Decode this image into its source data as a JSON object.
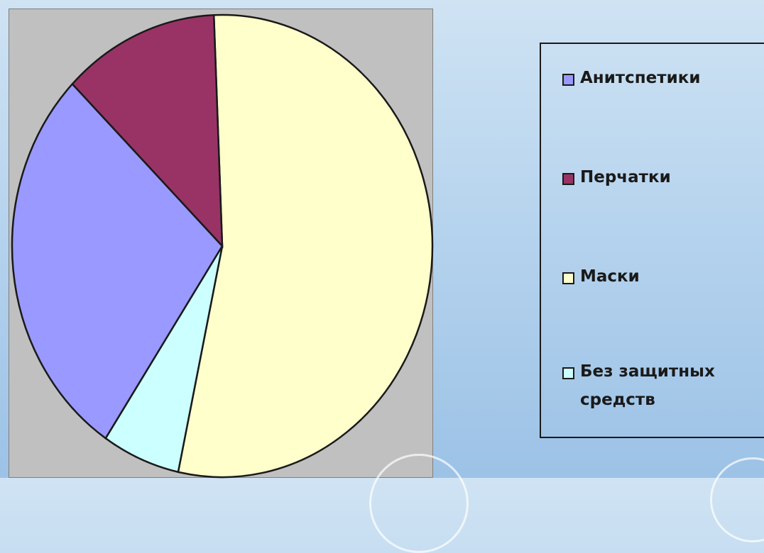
{
  "chart_data": {
    "type": "pie",
    "title": "",
    "categories": [
      "Анитспетики",
      "Перчатки",
      "Маски",
      "Без защитных средств"
    ],
    "values": [
      28,
      12,
      54,
      6
    ],
    "colors": [
      "#9999ff",
      "#993366",
      "#ffffcc",
      "#ccffff"
    ],
    "legend_position": "right"
  },
  "legend": {
    "items": [
      {
        "label": "Анитспетики",
        "color": "#9999ff"
      },
      {
        "label": "Перчатки",
        "color": "#993366"
      },
      {
        "label": "Маски",
        "color": "#ffffcc"
      },
      {
        "label": "Без защитных средств",
        "color": "#ccffff"
      }
    ]
  }
}
